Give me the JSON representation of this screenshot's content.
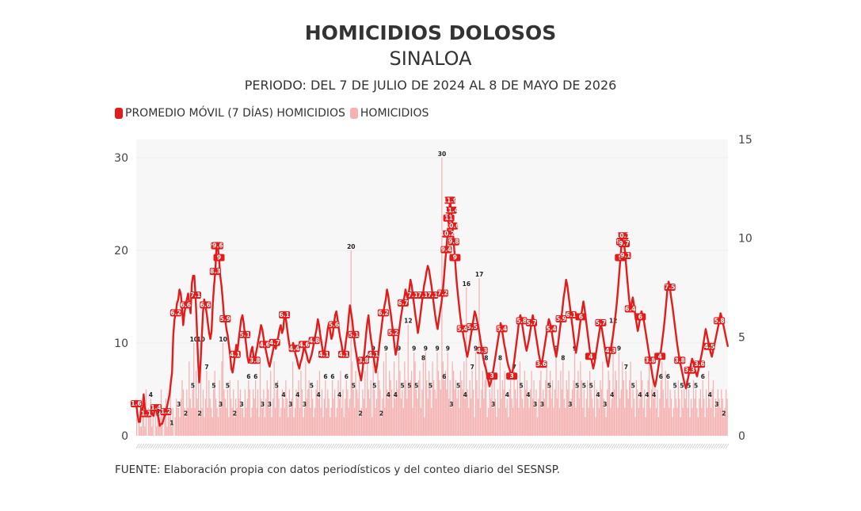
{
  "header": {
    "title": "HOMICIDIOS DOLOSOS",
    "subtitle": "SINALOA",
    "period": "PERIODO: DEL 7 DE JULIO DE 2024 AL 8 DE MAYO DE 2026"
  },
  "legend": {
    "line_label": "PROMEDIO MÓVIL (7 DÍAS) HOMICIDIOS",
    "bar_label": "HOMICIDIOS"
  },
  "footer": {
    "source": "FUENTE: Elaboración propia con datos periodísticos y del conteo diario del SESNSP."
  },
  "colors": {
    "line": "#e21b1b",
    "bar": "#f5b2b2",
    "bar_edge": "#f08f8f",
    "grid": "#ececec",
    "plot_bg": "#f7f7f7"
  },
  "chart_data": {
    "type": "bar",
    "x_start": "2024-07-07",
    "x_end": "2026-05-08",
    "left_axis": {
      "ylim": [
        0,
        30
      ],
      "ticks": [
        0,
        10,
        20,
        30
      ]
    },
    "right_axis": {
      "ylim": [
        0,
        15
      ],
      "ticks": [
        0,
        5,
        10,
        15
      ]
    },
    "grid": true,
    "legend_position": "top-left",
    "series": [
      {
        "name": "HOMICIDIOS",
        "type": "bar",
        "axis": "left",
        "values": [
          3,
          0,
          2,
          1,
          1,
          4,
          2,
          1,
          5,
          0,
          3,
          2,
          4,
          1,
          2,
          0,
          3,
          1,
          2,
          3,
          2,
          5,
          3,
          0,
          2,
          4,
          1,
          3,
          2,
          5,
          1,
          3,
          0,
          2,
          4,
          3,
          3,
          2,
          4,
          6,
          5,
          3,
          2,
          5,
          3,
          8,
          4,
          3,
          5,
          10,
          3,
          7,
          4,
          6,
          2,
          10,
          3,
          5,
          2,
          4,
          7,
          3,
          6,
          4,
          3,
          2,
          5,
          7,
          4,
          3,
          2,
          6,
          3,
          8,
          10,
          5,
          4,
          3,
          5,
          2,
          6,
          4,
          3,
          5,
          2,
          4,
          3,
          6,
          4,
          5,
          3,
          3,
          2,
          5,
          3,
          4,
          6,
          5,
          2,
          3,
          5,
          4,
          6,
          3,
          5,
          2,
          8,
          4,
          3,
          5,
          2,
          4,
          6,
          5,
          3,
          7,
          2,
          4,
          8,
          3,
          5,
          6,
          4,
          2,
          3,
          5,
          4,
          3,
          6,
          4,
          2,
          5,
          3,
          4,
          8,
          2,
          3,
          5,
          4,
          6,
          3,
          7,
          5,
          2,
          3,
          8,
          4,
          5,
          6,
          3,
          5,
          4,
          2,
          3,
          5,
          6,
          4,
          7,
          3,
          5,
          2,
          4,
          6,
          3,
          5,
          4,
          2,
          3,
          6,
          4,
          5,
          2,
          3,
          6,
          4,
          7,
          3,
          5,
          2,
          4,
          6,
          5,
          3,
          4,
          20,
          8,
          5,
          3,
          7,
          5,
          4,
          6,
          2,
          3,
          5,
          4,
          7,
          3,
          8,
          5,
          4,
          6,
          2,
          9,
          5,
          3,
          4,
          7,
          6,
          5,
          2,
          4,
          8,
          3,
          9,
          5,
          4,
          7,
          6,
          5,
          3,
          8,
          4,
          6,
          5,
          9,
          7,
          4,
          5,
          3,
          8,
          6,
          4,
          12,
          5,
          6,
          7,
          3,
          9,
          8,
          5,
          4,
          6,
          7,
          3,
          5,
          8,
          2,
          9,
          6,
          4,
          7,
          5,
          3,
          8,
          6,
          5,
          4,
          9,
          7,
          6,
          5,
          30,
          8,
          6,
          7,
          5,
          9,
          4,
          6,
          3,
          8,
          7,
          5,
          6,
          4,
          5,
          3,
          7,
          6,
          5,
          8,
          4,
          16,
          5,
          3,
          6,
          4,
          7,
          5,
          2,
          9,
          6,
          4,
          17,
          3,
          5,
          7,
          4,
          6,
          8,
          2,
          3,
          5,
          4,
          7,
          3,
          6,
          4,
          2,
          5,
          3,
          8,
          4,
          6,
          5,
          7,
          3,
          4,
          2,
          5,
          6,
          4,
          3,
          7,
          5,
          4,
          6,
          3,
          8,
          5,
          4,
          3,
          7,
          5,
          6,
          4,
          3,
          5,
          7,
          4,
          6,
          3,
          5,
          2,
          4,
          6,
          7,
          3,
          5,
          4,
          6,
          8,
          3,
          5,
          7,
          4,
          6,
          3,
          5,
          9,
          4,
          6,
          3,
          7,
          5,
          8,
          4,
          3,
          6,
          5,
          7,
          3,
          4,
          5,
          6,
          9,
          3,
          5,
          7,
          4,
          8,
          6,
          3,
          5,
          2,
          4,
          6,
          3,
          7,
          5,
          4,
          3,
          6,
          2,
          5,
          4,
          3,
          6,
          5,
          8,
          4,
          3,
          2,
          5,
          7,
          6,
          3,
          4,
          12,
          5,
          7,
          6,
          3,
          9,
          4,
          5,
          8,
          6,
          3,
          7,
          5,
          4,
          6,
          8,
          3,
          5,
          4,
          2,
          6,
          5,
          3,
          4,
          7,
          6,
          3,
          5,
          2,
          4,
          6,
          8,
          3,
          5,
          7,
          4,
          6,
          3,
          5,
          2,
          4,
          6,
          8,
          5,
          3,
          7,
          4,
          6,
          3,
          5,
          4,
          2,
          3,
          5,
          4,
          3,
          6,
          4,
          2,
          5,
          3,
          5,
          4,
          6,
          3,
          5,
          2,
          4,
          3,
          6,
          4,
          5,
          3,
          2,
          4,
          5,
          3,
          6,
          4,
          2,
          5,
          3,
          7,
          4,
          3,
          5,
          6,
          2,
          4,
          3,
          5,
          4,
          3,
          5,
          4,
          2,
          3,
          5,
          4
        ],
        "labeled_peaks": [
          20,
          16,
          30,
          16,
          17,
          12,
          12,
          10,
          10,
          10
        ]
      },
      {
        "name": "PROMEDIO MÓVIL (7 DÍAS) HOMICIDIOS",
        "type": "line",
        "axis": "right",
        "values": [
          1.6,
          1.1,
          0.7,
          0.7,
          1.4,
          1.1,
          2.1,
          1.4,
          1.1,
          1.0,
          1.1,
          1.2,
          1.3,
          1.1,
          1.0,
          1.4,
          1.4,
          1.1,
          0.9,
          0.5,
          0.6,
          0.6,
          0.8,
          1.0,
          1.2,
          1.5,
          1.8,
          2.1,
          2.7,
          3.2,
          5.1,
          5.9,
          6.2,
          6.7,
          6.9,
          7.4,
          7.2,
          6.6,
          5.6,
          6.2,
          6.6,
          6.9,
          7.2,
          6.7,
          6.2,
          7.7,
          8.1,
          8.1,
          7.1,
          5.6,
          3.9,
          2.7,
          3.6,
          4.9,
          6.2,
          6.9,
          6.6,
          6.2,
          5.7,
          5.2,
          4.9,
          5.3,
          6.7,
          7.6,
          8.3,
          9.6,
          9.6,
          9.0,
          8.1,
          7.6,
          6.9,
          6.1,
          5.9,
          5.4,
          5.1,
          4.6,
          4.1,
          3.4,
          3.2,
          3.6,
          4.1,
          4.6,
          4.3,
          4.9,
          5.4,
          5.9,
          6.1,
          5.7,
          5.1,
          4.6,
          4.0,
          3.7,
          3.9,
          4.3,
          4.5,
          4.0,
          3.8,
          4.2,
          4.5,
          4.9,
          5.2,
          5.6,
          5.4,
          5.0,
          4.6,
          4.3,
          4.0,
          3.7,
          3.5,
          3.8,
          4.1,
          4.4,
          4.7,
          4.4,
          4.8,
          5.0,
          5.4,
          5.6,
          5.2,
          5.4,
          6.1,
          6.0,
          5.5,
          5.0,
          4.6,
          4.3,
          4.4,
          4.7,
          4.4,
          4.1,
          3.9,
          3.6,
          3.4,
          3.7,
          3.9,
          4.2,
          4.6,
          4.3,
          4.1,
          3.8,
          3.7,
          3.9,
          4.1,
          4.4,
          4.8,
          5.1,
          5.4,
          5.9,
          5.6,
          5.1,
          4.7,
          4.3,
          4.1,
          4.5,
          4.9,
          5.4,
          5.7,
          5.3,
          4.9,
          5.1,
          5.6,
          6.1,
          6.3,
          5.9,
          5.4,
          5.0,
          4.7,
          4.3,
          4.1,
          4.4,
          4.9,
          5.3,
          6.0,
          6.6,
          6.2,
          5.8,
          5.1,
          4.6,
          4.2,
          3.8,
          3.4,
          3.1,
          2.8,
          3.2,
          3.8,
          4.4,
          5.1,
          5.7,
          6.1,
          5.4,
          4.9,
          4.5,
          4.1,
          3.6,
          3.2,
          3.6,
          4.1,
          4.7,
          5.2,
          5.7,
          6.2,
          6.6,
          6.9,
          7.4,
          7.1,
          6.6,
          6.2,
          5.7,
          5.2,
          4.6,
          4.1,
          4.4,
          4.9,
          5.4,
          5.9,
          6.3,
          6.7,
          7.0,
          7.4,
          7.1,
          6.9,
          7.4,
          7.9,
          7.6,
          7.1,
          6.6,
          6.1,
          5.7,
          5.2,
          5.6,
          6.1,
          6.6,
          7.1,
          7.6,
          7.9,
          8.3,
          8.6,
          8.4,
          8.0,
          7.6,
          7.1,
          6.6,
          6.1,
          5.7,
          5.4,
          5.9,
          6.3,
          6.7,
          7.2,
          7.9,
          8.7,
          9.4,
          10.2,
          11.0,
          11.9,
          11.4,
          10.6,
          9.8,
          9.0,
          8.1,
          7.4,
          6.8,
          6.2,
          5.7,
          5.4,
          5.0,
          4.7,
          4.3,
          4.0,
          4.3,
          4.7,
          5.1,
          5.5,
          5.9,
          6.3,
          6.1,
          5.8,
          5.5,
          5.1,
          4.7,
          4.3,
          3.9,
          3.6,
          3.4,
          3.1,
          2.8,
          2.5,
          2.7,
          3.0,
          3.3,
          3.7,
          4.1,
          4.5,
          4.9,
          5.3,
          5.7,
          5.4,
          5.0,
          4.6,
          4.3,
          3.9,
          3.6,
          3.4,
          3.2,
          3.0,
          3.4,
          3.8,
          4.3,
          4.8,
          5.3,
          5.9,
          6.1,
          5.8,
          5.4,
          5.0,
          4.6,
          4.3,
          4.6,
          4.9,
          5.3,
          5.7,
          6.1,
          5.8,
          5.3,
          4.9,
          4.5,
          4.1,
          3.8,
          3.6,
          3.9,
          4.3,
          4.7,
          5.1,
          5.5,
          5.9,
          5.7,
          5.4,
          5.0,
          4.6,
          4.3,
          4.0,
          4.4,
          4.9,
          5.4,
          5.9,
          6.4,
          7.0,
          7.4,
          7.9,
          7.6,
          7.1,
          6.6,
          6.1,
          5.6,
          5.1,
          4.6,
          4.2,
          4.6,
          5.0,
          5.5,
          6.0,
          6.4,
          6.8,
          6.4,
          5.9,
          5.4,
          4.9,
          4.4,
          4.0,
          3.7,
          3.4,
          3.7,
          4.1,
          4.5,
          4.9,
          5.3,
          5.7,
          5.4,
          5.0,
          4.6,
          4.2,
          3.8,
          3.5,
          3.9,
          4.3,
          4.7,
          5.1,
          5.6,
          6.1,
          6.7,
          7.4,
          8.2,
          9.0,
          9.8,
          10.1,
          9.7,
          9.1,
          8.3,
          7.6,
          6.9,
          6.4,
          6.7,
          7.0,
          6.6,
          6.1,
          5.7,
          5.3,
          5.6,
          6.0,
          6.3,
          6.1,
          5.8,
          5.4,
          5.0,
          4.6,
          4.2,
          3.8,
          3.4,
          3.0,
          2.7,
          2.5,
          2.8,
          3.2,
          3.6,
          4.0,
          4.4,
          4.9,
          5.4,
          6.0,
          6.7,
          7.4,
          7.8,
          7.5,
          7.0,
          6.6,
          6.1,
          5.6,
          5.1,
          4.6,
          4.2,
          3.8,
          3.5,
          3.2,
          2.9,
          2.6,
          2.4,
          2.7,
          3.0,
          3.3,
          3.6,
          3.9,
          3.7,
          3.4,
          3.2,
          3.0,
          3.3,
          3.6,
          3.9,
          4.2,
          4.6,
          5.0,
          5.4,
          5.1,
          4.8,
          4.5,
          4.2,
          4.0,
          4.3,
          4.6,
          4.9,
          5.2,
          5.5,
          5.8,
          6.2,
          6.0,
          5.7,
          5.4,
          5.1,
          4.8,
          4.5
        ]
      }
    ]
  }
}
